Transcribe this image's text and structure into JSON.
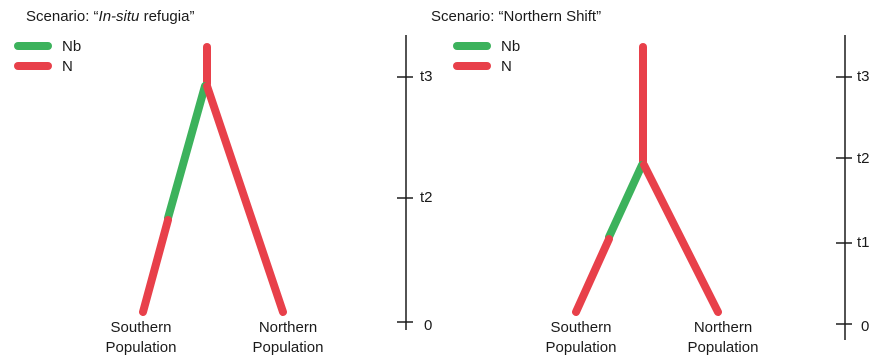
{
  "colors": {
    "nb": "#3cb25c",
    "n": "#e8404a",
    "axis": "#1a1a1a"
  },
  "legend": {
    "nb_label": "Nb",
    "n_label": "N"
  },
  "scenarios": [
    {
      "title_prefix": "Scenario: “",
      "title_italic": "In-situ",
      "title_rest": " refugia”",
      "left_leaf": [
        "Southern",
        "Population"
      ],
      "right_leaf": [
        "Northern",
        "Population"
      ],
      "ticks": [
        "t3",
        "t2",
        "0"
      ]
    },
    {
      "title_prefix": "Scenario: “",
      "title_italic": "",
      "title_rest": "Northern Shift”",
      "left_leaf": [
        "Southern",
        "Population"
      ],
      "right_leaf": [
        "Northern",
        "Population"
      ],
      "ticks": [
        "t3",
        "t2",
        "t1",
        "0"
      ]
    }
  ]
}
